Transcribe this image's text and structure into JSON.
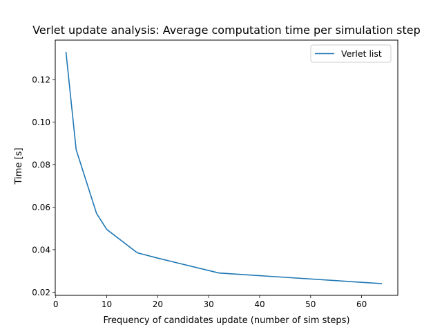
{
  "chart_data": {
    "type": "line",
    "title": "Verlet update analysis: Average computation time per simulation step",
    "xlabel": "Frequency of candidates update (number of sim steps)",
    "ylabel": "Time [s]",
    "xlim": [
      -0.1,
      67.1
    ],
    "ylim": [
      0.0185,
      0.1385
    ],
    "x_ticks": [
      0,
      10,
      20,
      30,
      40,
      50,
      60
    ],
    "x_tick_labels": [
      "0",
      "10",
      "20",
      "30",
      "40",
      "50",
      "60"
    ],
    "y_ticks": [
      0.02,
      0.04,
      0.06,
      0.08,
      0.1,
      0.12
    ],
    "y_tick_labels": [
      "0.02",
      "0.04",
      "0.06",
      "0.08",
      "0.10",
      "0.12"
    ],
    "grid": false,
    "legend_position": "top-right",
    "series": [
      {
        "name": "Verlet list",
        "color": "#1f77b4",
        "x": [
          2,
          4,
          8,
          10,
          16,
          20,
          32,
          64
        ],
        "y": [
          0.133,
          0.087,
          0.057,
          0.0495,
          0.0385,
          0.036,
          0.029,
          0.024
        ]
      }
    ]
  }
}
